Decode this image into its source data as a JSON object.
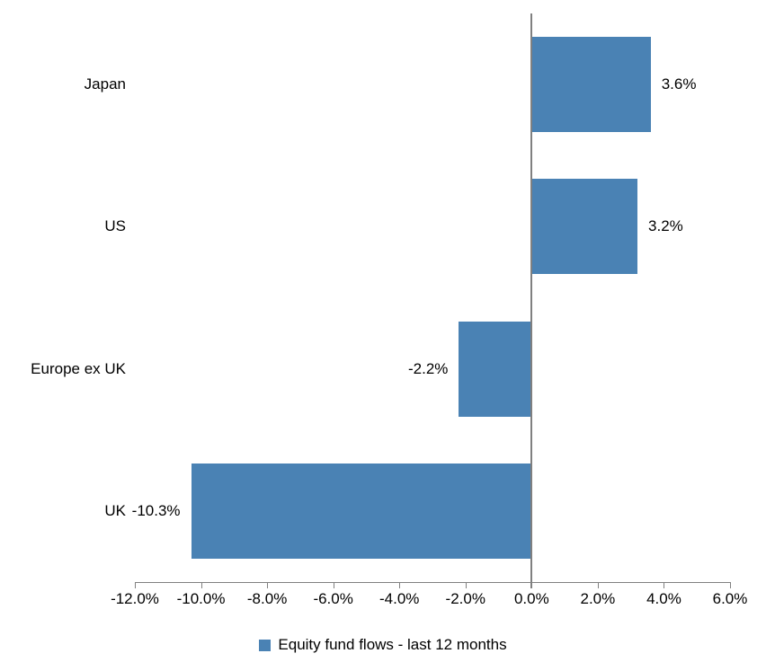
{
  "chart_data": {
    "type": "bar",
    "orientation": "horizontal",
    "categories": [
      "Japan",
      "US",
      "Europe ex UK",
      "UK"
    ],
    "values": [
      3.6,
      3.2,
      -2.2,
      -10.3
    ],
    "data_labels": [
      "3.6%",
      "3.2%",
      "-2.2%",
      "-10.3%"
    ],
    "xlim": [
      -12,
      6
    ],
    "x_ticks": [
      -12,
      -10,
      -8,
      -6,
      -4,
      -2,
      0,
      2,
      4,
      6
    ],
    "x_tick_labels": [
      "-12.0%",
      "-10.0%",
      "-8.0%",
      "-6.0%",
      "-4.0%",
      "-2.0%",
      "0.0%",
      "2.0%",
      "4.0%",
      "6.0%"
    ],
    "grid": false,
    "legend_position": "bottom",
    "legend": {
      "label": "Equity fund flows - last 12 months"
    },
    "colors": {
      "bar": "#4A82B4",
      "axis": "#808080",
      "text": "#000000"
    }
  }
}
